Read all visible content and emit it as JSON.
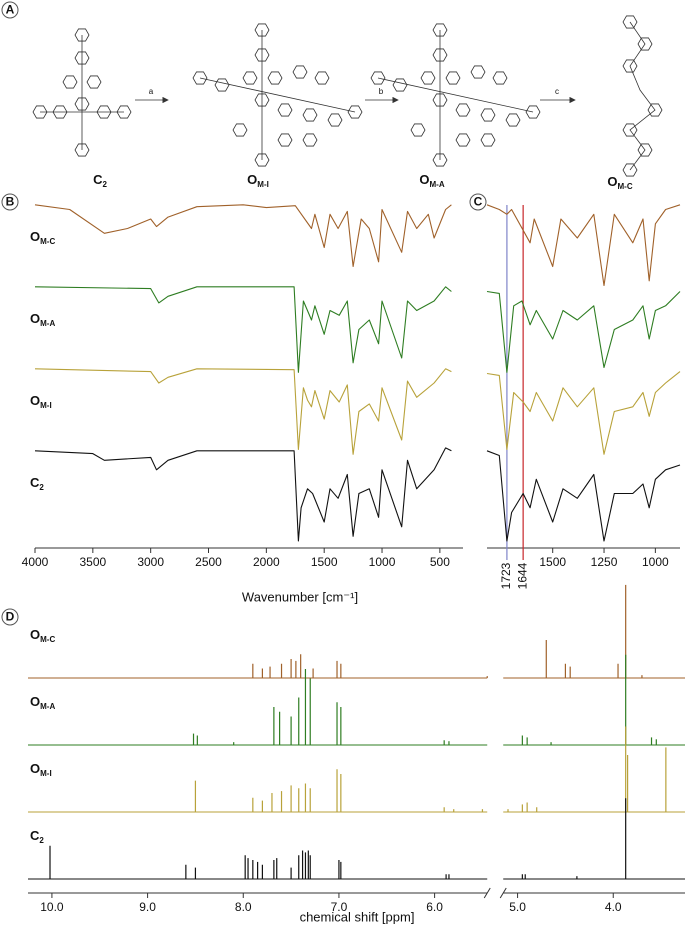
{
  "panel_labels": [
    "A",
    "B",
    "C",
    "D"
  ],
  "scheme": {
    "compounds": [
      "C2",
      "OM-I",
      "OM-A",
      "OM-C"
    ],
    "steps": [
      "a",
      "b",
      "c"
    ]
  },
  "chart_data": [
    {
      "type": "line",
      "xlabel": "Wavenumber [cm⁻¹]",
      "xlim": [
        4000,
        300
      ],
      "xticks": [
        4000,
        3500,
        3000,
        2500,
        2000,
        1500,
        1000,
        500
      ],
      "series": [
        {
          "name": "OM-C",
          "color": "#a0612a",
          "x": [
            4000,
            3700,
            3400,
            3200,
            3000,
            2950,
            2850,
            2600,
            2200,
            2000,
            1750,
            1610,
            1580,
            1500,
            1450,
            1380,
            1300,
            1250,
            1180,
            1110,
            1030,
            1000,
            830,
            780,
            700,
            600,
            550,
            450,
            400
          ],
          "values": [
            0.95,
            0.9,
            0.65,
            0.7,
            0.8,
            0.72,
            0.82,
            0.93,
            0.95,
            0.92,
            0.94,
            0.7,
            0.85,
            0.5,
            0.85,
            0.7,
            0.88,
            0.3,
            0.8,
            0.7,
            0.35,
            0.9,
            0.45,
            0.88,
            0.7,
            0.85,
            0.6,
            0.9,
            0.95
          ]
        },
        {
          "name": "OM-A",
          "color": "#2e7d22",
          "x": [
            4000,
            3000,
            2930,
            2850,
            2600,
            1760,
            1723,
            1680,
            1610,
            1580,
            1500,
            1450,
            1370,
            1300,
            1250,
            1200,
            1110,
            1030,
            1000,
            830,
            780,
            700,
            550,
            450,
            400
          ],
          "values": [
            0.95,
            0.93,
            0.78,
            0.85,
            0.95,
            0.95,
            0.05,
            0.8,
            0.6,
            0.75,
            0.45,
            0.7,
            0.65,
            0.8,
            0.15,
            0.5,
            0.6,
            0.35,
            0.8,
            0.2,
            0.8,
            0.7,
            0.8,
            0.95,
            0.9
          ]
        },
        {
          "name": "OM-I",
          "color": "#b8a23a",
          "x": [
            4000,
            3000,
            2930,
            2850,
            2600,
            1760,
            1723,
            1680,
            1644,
            1610,
            1580,
            1500,
            1450,
            1370,
            1300,
            1250,
            1200,
            1110,
            1030,
            1000,
            830,
            780,
            700,
            550,
            450,
            400
          ],
          "values": [
            0.95,
            0.92,
            0.8,
            0.86,
            0.95,
            0.94,
            0.1,
            0.75,
            0.62,
            0.55,
            0.72,
            0.42,
            0.72,
            0.6,
            0.78,
            0.05,
            0.5,
            0.58,
            0.4,
            0.75,
            0.2,
            0.82,
            0.65,
            0.8,
            0.95,
            0.92
          ]
        },
        {
          "name": "C2",
          "color": "#111111",
          "x": [
            4000,
            3500,
            3400,
            3000,
            2950,
            2850,
            2600,
            1760,
            1723,
            1700,
            1644,
            1600,
            1500,
            1450,
            1380,
            1300,
            1250,
            1200,
            1110,
            1030,
            1000,
            830,
            780,
            700,
            550,
            450,
            400
          ],
          "values": [
            0.95,
            0.92,
            0.85,
            0.88,
            0.75,
            0.85,
            0.95,
            0.95,
            0.0,
            0.35,
            0.55,
            0.5,
            0.2,
            0.55,
            0.45,
            0.7,
            0.05,
            0.5,
            0.55,
            0.25,
            0.75,
            0.15,
            0.85,
            0.55,
            0.75,
            0.98,
            0.95
          ]
        }
      ]
    },
    {
      "type": "line",
      "xlim": [
        1820,
        880
      ],
      "xticks": [
        1500,
        1250,
        1000
      ],
      "annotations": [
        {
          "x": 1723,
          "label": "1723",
          "color": "#7f84c8"
        },
        {
          "x": 1644,
          "label": "1644",
          "color": "#c8262a"
        }
      ],
      "series": [
        {
          "color": "#a0612a",
          "x": [
            1820,
            1760,
            1723,
            1700,
            1610,
            1590,
            1500,
            1460,
            1380,
            1300,
            1250,
            1200,
            1110,
            1060,
            1030,
            1000,
            950,
            880
          ],
          "values": [
            0.95,
            0.9,
            0.85,
            0.9,
            0.55,
            0.8,
            0.3,
            0.8,
            0.6,
            0.85,
            0.1,
            0.85,
            0.55,
            0.8,
            0.15,
            0.75,
            0.9,
            0.95
          ]
        },
        {
          "color": "#2e7d22",
          "x": [
            1820,
            1760,
            1723,
            1690,
            1650,
            1610,
            1580,
            1500,
            1450,
            1380,
            1300,
            1250,
            1200,
            1110,
            1060,
            1030,
            1000,
            950,
            880
          ],
          "values": [
            0.9,
            0.88,
            0.05,
            0.75,
            0.8,
            0.55,
            0.7,
            0.4,
            0.7,
            0.6,
            0.75,
            0.1,
            0.5,
            0.6,
            0.75,
            0.4,
            0.7,
            0.75,
            0.9
          ]
        },
        {
          "color": "#b8a23a",
          "x": [
            1820,
            1760,
            1723,
            1690,
            1644,
            1610,
            1580,
            1500,
            1450,
            1380,
            1300,
            1250,
            1200,
            1110,
            1060,
            1030,
            1000,
            950,
            880
          ],
          "values": [
            0.9,
            0.88,
            0.1,
            0.7,
            0.6,
            0.5,
            0.7,
            0.4,
            0.75,
            0.55,
            0.75,
            0.05,
            0.5,
            0.55,
            0.7,
            0.45,
            0.7,
            0.8,
            0.92
          ]
        },
        {
          "color": "#111111",
          "x": [
            1820,
            1760,
            1723,
            1700,
            1644,
            1610,
            1580,
            1500,
            1450,
            1380,
            1300,
            1250,
            1200,
            1110,
            1060,
            1030,
            1000,
            950,
            880
          ],
          "values": [
            0.95,
            0.9,
            0.0,
            0.3,
            0.5,
            0.35,
            0.65,
            0.2,
            0.55,
            0.45,
            0.7,
            0.0,
            0.5,
            0.5,
            0.6,
            0.35,
            0.65,
            0.75,
            0.8
          ]
        }
      ]
    },
    {
      "type": "stem",
      "xlabel": "chemical shift [ppm]",
      "xlim": [
        10.25,
        3.25
      ],
      "xbreak": [
        5.45,
        5.15
      ],
      "xticks": [
        {
          "value": 10,
          "label": "10.0"
        },
        {
          "value": 9,
          "label": "9.0"
        },
        {
          "value": 8,
          "label": "8.0"
        },
        {
          "value": 7,
          "label": "7.0"
        },
        {
          "value": 6,
          "label": "6.0"
        },
        {
          "value": 5,
          "label": "5.0"
        },
        {
          "value": 4,
          "label": "4.0"
        }
      ],
      "series": [
        {
          "name": "OM-C",
          "color": "#a0612a",
          "x": [
            7.9,
            7.8,
            7.72,
            7.6,
            7.5,
            7.45,
            7.4,
            7.27,
            7.02,
            6.98,
            5.45,
            4.7,
            4.5,
            4.45,
            3.95,
            3.87,
            3.7
          ],
          "values": [
            0.15,
            0.1,
            0.12,
            0.15,
            0.2,
            0.18,
            0.25,
            0.1,
            0.18,
            0.15,
            0.02,
            0.4,
            0.15,
            0.12,
            0.15,
            0.98,
            0.03
          ]
        },
        {
          "name": "OM-A",
          "color": "#2e7d22",
          "x": [
            8.52,
            8.48,
            8.1,
            7.68,
            7.62,
            7.5,
            7.42,
            7.35,
            7.3,
            7.02,
            6.98,
            5.9,
            5.85,
            4.95,
            4.9,
            4.65,
            3.87,
            3.6,
            3.55
          ],
          "values": [
            0.12,
            0.1,
            0.03,
            0.4,
            0.35,
            0.3,
            0.5,
            0.8,
            0.7,
            0.45,
            0.4,
            0.05,
            0.04,
            0.1,
            0.08,
            0.03,
            0.95,
            0.08,
            0.06
          ]
        },
        {
          "name": "OM-I",
          "color": "#b8a23a",
          "x": [
            8.5,
            7.9,
            7.8,
            7.7,
            7.6,
            7.5,
            7.42,
            7.35,
            7.3,
            7.02,
            6.98,
            5.9,
            5.8,
            5.5,
            5.1,
            4.95,
            4.9,
            4.8,
            3.87,
            3.85,
            3.45
          ],
          "values": [
            0.33,
            0.15,
            0.12,
            0.2,
            0.22,
            0.28,
            0.25,
            0.3,
            0.25,
            0.45,
            0.4,
            0.05,
            0.03,
            0.03,
            0.03,
            0.08,
            0.1,
            0.05,
            0.9,
            0.6,
            0.68
          ]
        },
        {
          "name": "C2",
          "color": "#111111",
          "x": [
            10.02,
            8.6,
            8.5,
            7.98,
            7.95,
            7.9,
            7.85,
            7.8,
            7.68,
            7.65,
            7.5,
            7.42,
            7.38,
            7.35,
            7.32,
            7.3,
            7.0,
            6.98,
            5.88,
            5.85,
            4.95,
            4.92,
            4.38,
            3.87
          ],
          "values": [
            0.35,
            0.15,
            0.12,
            0.25,
            0.22,
            0.2,
            0.18,
            0.15,
            0.2,
            0.22,
            0.12,
            0.25,
            0.3,
            0.28,
            0.3,
            0.25,
            0.2,
            0.18,
            0.05,
            0.05,
            0.05,
            0.05,
            0.03,
            0.85
          ]
        }
      ]
    }
  ]
}
